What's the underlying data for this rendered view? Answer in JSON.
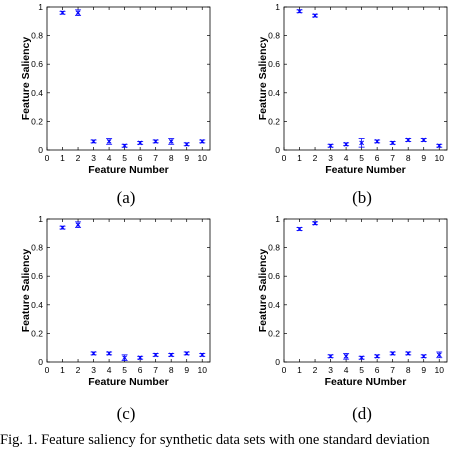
{
  "caption": "Fig. 1.   Feature saliency for synthetic data sets with one standard deviation",
  "chart_data": [
    {
      "type": "scatter",
      "panel_label": "(a)",
      "xlabel": "Feature Number",
      "ylabel": "Feature Saliency",
      "xlim": [
        0,
        10.5
      ],
      "ylim": [
        0,
        1
      ],
      "xticks": [
        "0",
        "1",
        "2",
        "3",
        "4",
        "5",
        "6",
        "7",
        "8",
        "9",
        "10"
      ],
      "yticks": [
        "0",
        "0.2",
        "0.4",
        "0.6",
        "0.8",
        "1"
      ],
      "grid": false,
      "marker_color": "#0000ff",
      "x": [
        1,
        2,
        3,
        4,
        5,
        6,
        7,
        8,
        9,
        10
      ],
      "values": [
        0.96,
        0.96,
        0.06,
        0.06,
        0.03,
        0.05,
        0.06,
        0.06,
        0.04,
        0.06
      ],
      "error": [
        0.01,
        0.02,
        0.01,
        0.02,
        0.01,
        0.01,
        0.01,
        0.02,
        0.01,
        0.01
      ]
    },
    {
      "type": "scatter",
      "panel_label": "(b)",
      "xlabel": "Feature Number",
      "ylabel": "Feature Saliency",
      "xlim": [
        0,
        10.5
      ],
      "ylim": [
        0,
        1
      ],
      "xticks": [
        "0",
        "1",
        "2",
        "3",
        "4",
        "5",
        "6",
        "7",
        "8",
        "9",
        "10"
      ],
      "yticks": [
        "0",
        "0.2",
        "0.4",
        "0.6",
        "0.8",
        "1"
      ],
      "grid": false,
      "marker_color": "#0000ff",
      "x": [
        1,
        2,
        3,
        4,
        5,
        6,
        7,
        8,
        9,
        10
      ],
      "values": [
        0.97,
        0.94,
        0.03,
        0.04,
        0.05,
        0.06,
        0.05,
        0.07,
        0.07,
        0.03
      ],
      "error": [
        0.01,
        0.01,
        0.01,
        0.01,
        0.03,
        0.01,
        0.01,
        0.01,
        0.01,
        0.01
      ]
    },
    {
      "type": "scatter",
      "panel_label": "(c)",
      "xlabel": "Feature Number",
      "ylabel": "Feature Saliency",
      "xlim": [
        0,
        10.5
      ],
      "ylim": [
        0,
        1
      ],
      "xticks": [
        "0",
        "1",
        "2",
        "3",
        "4",
        "5",
        "6",
        "7",
        "8",
        "9",
        "10"
      ],
      "yticks": [
        "0",
        "0.2",
        "0.4",
        "0.6",
        "0.8",
        "1"
      ],
      "grid": false,
      "marker_color": "#0000ff",
      "x": [
        1,
        2,
        3,
        4,
        5,
        6,
        7,
        8,
        9,
        10
      ],
      "values": [
        0.94,
        0.96,
        0.06,
        0.06,
        0.03,
        0.03,
        0.05,
        0.05,
        0.06,
        0.05
      ],
      "error": [
        0.01,
        0.02,
        0.01,
        0.01,
        0.02,
        0.01,
        0.01,
        0.01,
        0.01,
        0.01
      ]
    },
    {
      "type": "scatter",
      "panel_label": "(d)",
      "xlabel": "Feature NUmber",
      "ylabel": "Feature Saliency",
      "xlim": [
        0,
        10.5
      ],
      "ylim": [
        0,
        1
      ],
      "xticks": [
        "0",
        "1",
        "2",
        "3",
        "4",
        "5",
        "6",
        "7",
        "8",
        "9",
        "10"
      ],
      "yticks": [
        "0",
        "0.2",
        "0.4",
        "0.6",
        "0.8",
        "1"
      ],
      "grid": false,
      "marker_color": "#0000ff",
      "x": [
        1,
        2,
        3,
        4,
        5,
        6,
        7,
        8,
        9,
        10
      ],
      "values": [
        0.93,
        0.97,
        0.04,
        0.04,
        0.03,
        0.04,
        0.06,
        0.06,
        0.04,
        0.05
      ],
      "error": [
        0.01,
        0.01,
        0.01,
        0.02,
        0.01,
        0.01,
        0.01,
        0.01,
        0.01,
        0.02
      ]
    }
  ]
}
